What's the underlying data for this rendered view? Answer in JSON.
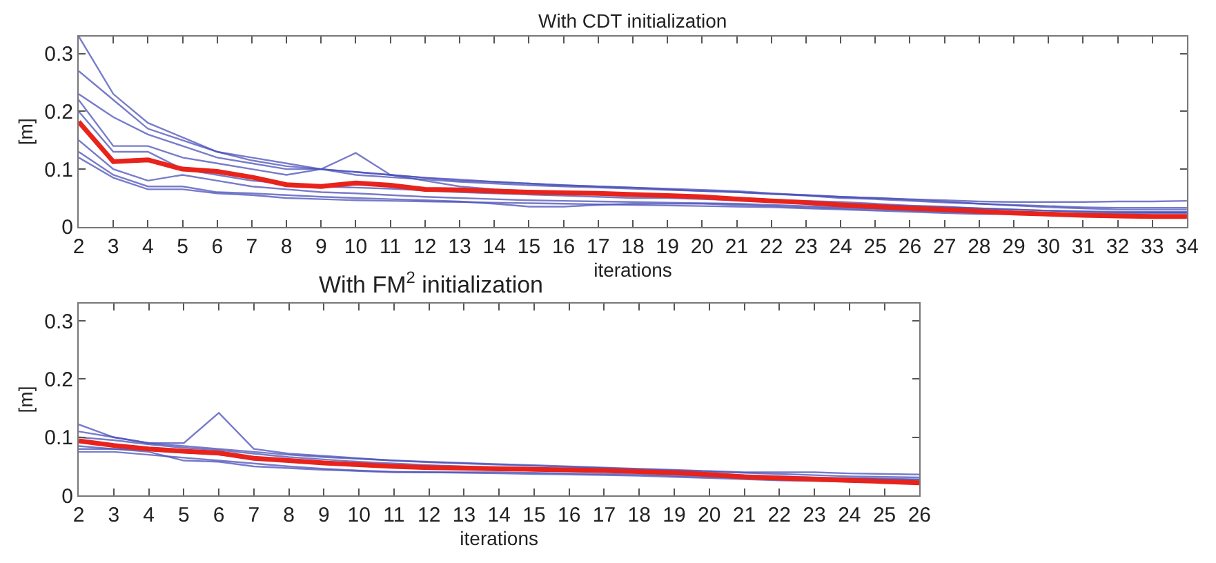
{
  "chart_data": [
    {
      "type": "line",
      "title": "With CDT initialization",
      "xlabel": "iterations",
      "ylabel": "[m]",
      "x": [
        2,
        3,
        4,
        5,
        6,
        7,
        8,
        9,
        10,
        11,
        12,
        13,
        14,
        15,
        16,
        17,
        18,
        19,
        20,
        21,
        22,
        23,
        24,
        25,
        26,
        27,
        28,
        29,
        30,
        31,
        32,
        33,
        34
      ],
      "xlim": [
        2,
        34
      ],
      "xticks": [
        2,
        3,
        4,
        5,
        6,
        7,
        8,
        9,
        10,
        11,
        12,
        13,
        14,
        15,
        16,
        17,
        18,
        19,
        20,
        21,
        22,
        23,
        24,
        25,
        26,
        27,
        28,
        29,
        30,
        31,
        32,
        33,
        34
      ],
      "ylim": [
        0,
        0.33
      ],
      "yticks": [
        0,
        0.1,
        0.2,
        0.3
      ],
      "marker": "none",
      "line_style": "solid",
      "series": [
        {
          "color": "#4a50b8",
          "values": [
            0.33,
            0.23,
            0.18,
            0.155,
            0.13,
            0.12,
            0.11,
            0.1,
            0.095,
            0.09,
            0.085,
            0.08,
            0.078,
            0.075,
            0.072,
            0.07,
            0.068,
            0.066,
            0.064,
            0.062,
            0.058,
            0.055,
            0.052,
            0.05,
            0.047,
            0.044,
            0.04,
            0.037,
            0.034,
            0.032,
            0.03,
            0.03,
            0.03
          ]
        },
        {
          "color": "#4a50b8",
          "values": [
            0.27,
            0.22,
            0.17,
            0.15,
            0.13,
            0.115,
            0.105,
            0.1,
            0.095,
            0.09,
            0.085,
            0.082,
            0.078,
            0.075,
            0.072,
            0.07,
            0.068,
            0.065,
            0.062,
            0.06,
            0.057,
            0.054,
            0.05,
            0.048,
            0.045,
            0.042,
            0.04,
            0.038,
            0.036,
            0.034,
            0.033,
            0.033,
            0.033
          ]
        },
        {
          "color": "#4a50b8",
          "values": [
            0.23,
            0.19,
            0.16,
            0.14,
            0.12,
            0.11,
            0.1,
            0.1,
            0.09,
            0.086,
            0.082,
            0.078,
            0.075,
            0.072,
            0.07,
            0.068,
            0.066,
            0.064,
            0.062,
            0.06,
            0.057,
            0.055,
            0.052,
            0.05,
            0.048,
            0.046,
            0.044,
            0.043,
            0.043,
            0.043,
            0.044,
            0.044,
            0.045
          ]
        },
        {
          "color": "#4a50b8",
          "values": [
            0.22,
            0.14,
            0.14,
            0.12,
            0.11,
            0.1,
            0.09,
            0.1,
            0.128,
            0.09,
            0.08,
            0.07,
            0.065,
            0.062,
            0.06,
            0.058,
            0.056,
            0.055,
            0.053,
            0.05,
            0.047,
            0.045,
            0.043,
            0.04,
            0.037,
            0.035,
            0.032,
            0.03,
            0.028,
            0.026,
            0.025,
            0.025,
            0.025
          ]
        },
        {
          "color": "#4a50b8",
          "values": [
            0.2,
            0.13,
            0.13,
            0.1,
            0.09,
            0.08,
            0.075,
            0.07,
            0.068,
            0.066,
            0.063,
            0.06,
            0.058,
            0.056,
            0.054,
            0.052,
            0.05,
            0.05,
            0.048,
            0.046,
            0.044,
            0.042,
            0.04,
            0.038,
            0.036,
            0.034,
            0.032,
            0.03,
            0.028,
            0.027,
            0.026,
            0.026,
            0.026
          ]
        },
        {
          "color": "#4a50b8",
          "values": [
            0.15,
            0.1,
            0.08,
            0.09,
            0.08,
            0.07,
            0.065,
            0.06,
            0.058,
            0.055,
            0.052,
            0.05,
            0.048,
            0.046,
            0.045,
            0.044,
            0.043,
            0.042,
            0.041,
            0.04,
            0.038,
            0.036,
            0.034,
            0.032,
            0.03,
            0.028,
            0.026,
            0.024,
            0.022,
            0.02,
            0.02,
            0.02,
            0.02
          ]
        },
        {
          "color": "#4a50b8",
          "values": [
            0.13,
            0.09,
            0.07,
            0.07,
            0.06,
            0.058,
            0.055,
            0.052,
            0.05,
            0.048,
            0.046,
            0.044,
            0.04,
            0.035,
            0.035,
            0.038,
            0.04,
            0.04,
            0.04,
            0.038,
            0.036,
            0.034,
            0.032,
            0.03,
            0.028,
            0.026,
            0.024,
            0.022,
            0.02,
            0.019,
            0.018,
            0.018,
            0.018
          ]
        },
        {
          "color": "#4a50b8",
          "values": [
            0.12,
            0.085,
            0.065,
            0.065,
            0.058,
            0.055,
            0.05,
            0.048,
            0.046,
            0.045,
            0.044,
            0.043,
            0.042,
            0.041,
            0.04,
            0.039,
            0.038,
            0.037,
            0.036,
            0.035,
            0.034,
            0.032,
            0.03,
            0.028,
            0.026,
            0.024,
            0.022,
            0.022,
            0.022,
            0.023,
            0.023,
            0.024,
            0.024
          ]
        },
        {
          "color": "#e8231b",
          "values": [
            0.182,
            0.113,
            0.116,
            0.1,
            0.096,
            0.086,
            0.073,
            0.07,
            0.076,
            0.072,
            0.065,
            0.064,
            0.062,
            0.06,
            0.059,
            0.058,
            0.056,
            0.054,
            0.052,
            0.048,
            0.045,
            0.042,
            0.038,
            0.035,
            0.032,
            0.03,
            0.027,
            0.024,
            0.022,
            0.02,
            0.019,
            0.018,
            0.018
          ]
        }
      ]
    },
    {
      "type": "line",
      "title": "With FM$^{2}$ initialization",
      "xlabel": "iterations",
      "ylabel": "[m]",
      "x": [
        2,
        3,
        4,
        5,
        6,
        7,
        8,
        9,
        10,
        11,
        12,
        13,
        14,
        15,
        16,
        17,
        18,
        19,
        20,
        21,
        22,
        23,
        24,
        25,
        26
      ],
      "xlim": [
        2,
        26
      ],
      "xticks": [
        2,
        3,
        4,
        5,
        6,
        7,
        8,
        9,
        10,
        11,
        12,
        13,
        14,
        15,
        16,
        17,
        18,
        19,
        20,
        21,
        22,
        23,
        24,
        25,
        26
      ],
      "ylim": [
        0,
        0.33
      ],
      "yticks": [
        0,
        0.1,
        0.2,
        0.3
      ],
      "marker": "none",
      "line_style": "solid",
      "series": [
        {
          "color": "#4a50b8",
          "values": [
            0.122,
            0.1,
            0.09,
            0.085,
            0.08,
            0.075,
            0.07,
            0.066,
            0.063,
            0.06,
            0.058,
            0.056,
            0.054,
            0.052,
            0.05,
            0.048,
            0.046,
            0.044,
            0.042,
            0.04,
            0.04,
            0.04,
            0.038,
            0.037,
            0.036
          ]
        },
        {
          "color": "#4a50b8",
          "values": [
            0.11,
            0.1,
            0.09,
            0.09,
            0.142,
            0.08,
            0.072,
            0.068,
            0.064,
            0.06,
            0.057,
            0.055,
            0.053,
            0.051,
            0.049,
            0.047,
            0.045,
            0.043,
            0.041,
            0.039,
            0.037,
            0.035,
            0.033,
            0.032,
            0.031
          ]
        },
        {
          "color": "#4a50b8",
          "values": [
            0.1,
            0.095,
            0.088,
            0.082,
            0.078,
            0.072,
            0.066,
            0.062,
            0.058,
            0.055,
            0.052,
            0.05,
            0.048,
            0.046,
            0.044,
            0.042,
            0.04,
            0.038,
            0.036,
            0.034,
            0.032,
            0.03,
            0.029,
            0.028,
            0.027
          ]
        },
        {
          "color": "#4a50b8",
          "values": [
            0.085,
            0.08,
            0.075,
            0.06,
            0.058,
            0.05,
            0.047,
            0.044,
            0.042,
            0.04,
            0.04,
            0.04,
            0.04,
            0.039,
            0.038,
            0.037,
            0.036,
            0.034,
            0.032,
            0.03,
            0.028,
            0.027,
            0.026,
            0.025,
            0.024
          ]
        },
        {
          "color": "#4a50b8",
          "values": [
            0.075,
            0.075,
            0.07,
            0.065,
            0.06,
            0.055,
            0.05,
            0.046,
            0.043,
            0.041,
            0.04,
            0.039,
            0.038,
            0.037,
            0.036,
            0.035,
            0.034,
            0.032,
            0.03,
            0.028,
            0.026,
            0.025,
            0.024,
            0.023,
            0.022
          ]
        },
        {
          "color": "#4a50b8",
          "values": [
            0.08,
            0.08,
            0.078,
            0.074,
            0.07,
            0.065,
            0.06,
            0.056,
            0.052,
            0.049,
            0.047,
            0.045,
            0.044,
            0.043,
            0.042,
            0.041,
            0.04,
            0.039,
            0.037,
            0.035,
            0.033,
            0.031,
            0.03,
            0.029,
            0.028
          ]
        },
        {
          "color": "#e8231b",
          "values": [
            0.094,
            0.086,
            0.08,
            0.076,
            0.073,
            0.064,
            0.06,
            0.056,
            0.053,
            0.05,
            0.048,
            0.047,
            0.046,
            0.045,
            0.044,
            0.043,
            0.041,
            0.039,
            0.036,
            0.032,
            0.03,
            0.028,
            0.026,
            0.024,
            0.022
          ]
        }
      ]
    }
  ]
}
